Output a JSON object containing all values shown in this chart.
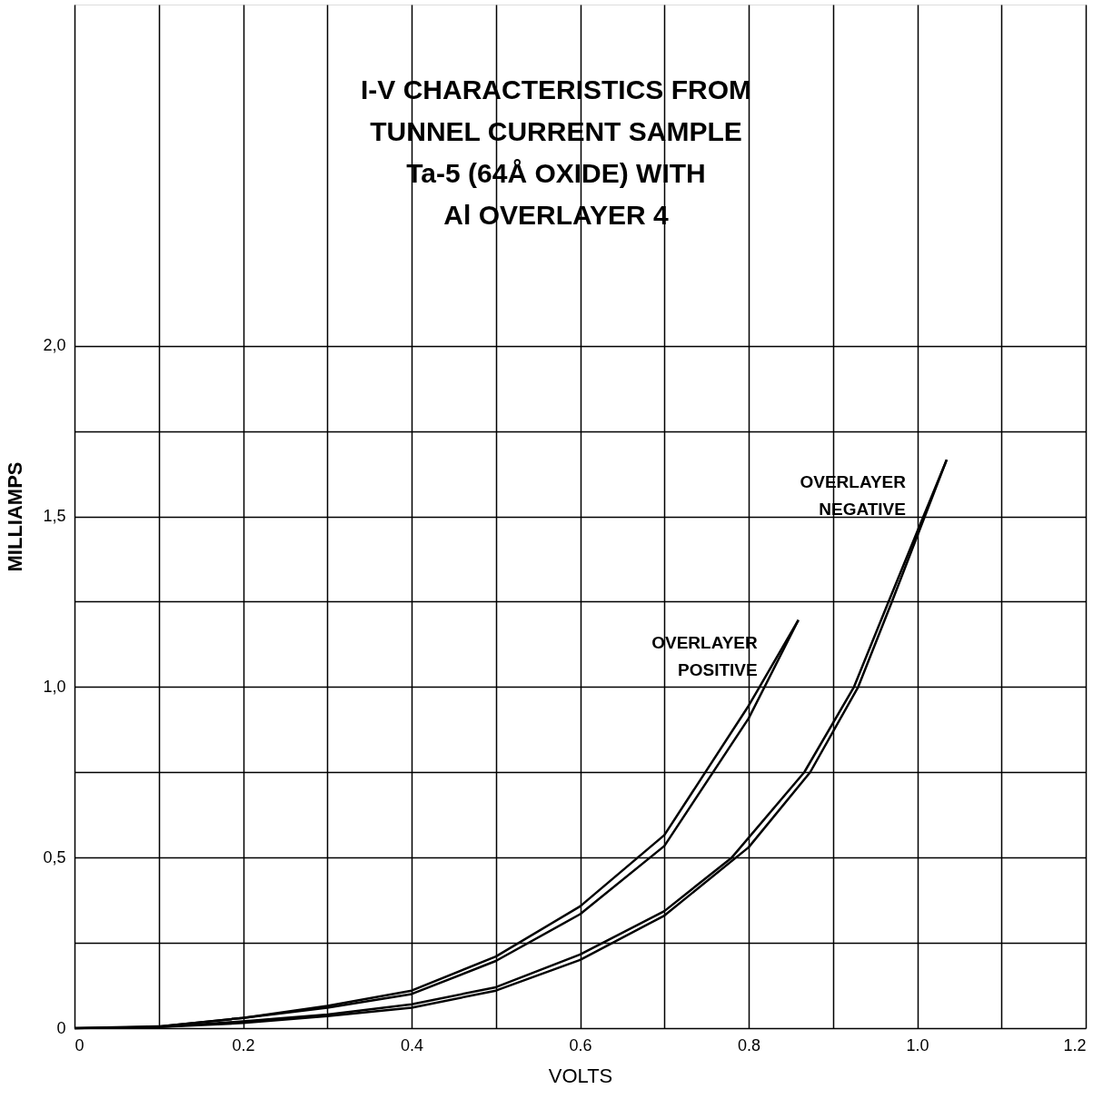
{
  "chart_data": {
    "type": "line",
    "title": "I-V CHARACTERISTICS FROM\nTUNNEL CURRENT SAMPLE\nTa-5 (64Å OXIDE) WITH\nAl OVERLAYER 4",
    "xlabel": "VOLTS",
    "ylabel": "MILLIAMPS",
    "xlim": [
      0,
      1.2
    ],
    "ylim": [
      0,
      3.0
    ],
    "xticks": [
      0,
      {
        "value": 0.1,
        "label": null
      },
      0.2,
      {
        "value": 0.3,
        "label": null
      },
      0.4,
      {
        "value": 0.5,
        "label": null
      },
      0.6,
      {
        "value": 0.7,
        "label": null
      },
      0.8,
      {
        "value": 0.9,
        "label": null
      },
      {
        "value": 1.0,
        "label": "1.0"
      },
      {
        "value": 1.1,
        "label": null
      },
      1.2
    ],
    "yticks": [
      0,
      {
        "value": 0.25,
        "label": null
      },
      {
        "value": 0.5,
        "label": "0,5"
      },
      {
        "value": 0.75,
        "label": null
      },
      {
        "value": 1.0,
        "label": "1,0"
      },
      {
        "value": 1.25,
        "label": null
      },
      {
        "value": 1.5,
        "label": "1,5"
      },
      {
        "value": 1.75,
        "label": null
      },
      {
        "value": 2.0,
        "label": "2,0"
      }
    ],
    "grid": true,
    "legend": false,
    "marker": "none",
    "line_style": "solid",
    "series": [
      {
        "name": "OVERLAYER POSITIVE",
        "color": "#000000",
        "x": [
          0,
          0.1,
          0.2,
          0.3,
          0.4,
          0.5,
          0.6,
          0.7,
          0.8,
          0.859
        ],
        "values": [
          0,
          0.005,
          0.03,
          0.06,
          0.1,
          0.197,
          0.334,
          0.534,
          0.908,
          1.196
        ]
      },
      {
        "color": "#000000",
        "x": [
          0.1,
          0.2,
          0.3,
          0.4,
          0.5,
          0.6,
          0.7,
          0.8,
          0.859
        ],
        "values": [
          0.005,
          0.03,
          0.065,
          0.11,
          0.21,
          0.357,
          0.566,
          0.945,
          1.196
        ]
      },
      {
        "name": "OVERLAYER NEGATIVE",
        "color": "#000000",
        "x": [
          0,
          0.1,
          0.2,
          0.3,
          0.4,
          0.5,
          0.6,
          0.7,
          0.78,
          0.866,
          0.925,
          0.966,
          1.035
        ],
        "values": [
          0,
          0.003,
          0.02,
          0.04,
          0.07,
          0.12,
          0.216,
          0.343,
          0.5,
          0.75,
          1.0,
          1.25,
          1.666
        ]
      },
      {
        "color": "#000000",
        "x": [
          0.1,
          0.2,
          0.3,
          0.4,
          0.5,
          0.6,
          0.7,
          0.8,
          0.873,
          0.93,
          0.97,
          1.035
        ],
        "values": [
          0.003,
          0.015,
          0.035,
          0.06,
          0.11,
          0.2,
          0.33,
          0.53,
          0.75,
          1.0,
          1.25,
          1.666
        ]
      }
    ]
  }
}
